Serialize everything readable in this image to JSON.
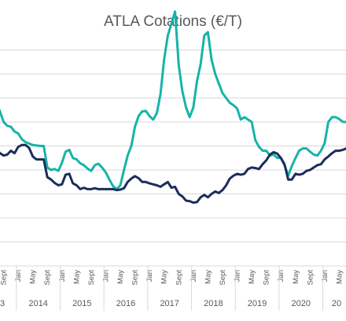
{
  "chart_data": {
    "type": "line",
    "title": "ATLA Cotations (€/T)",
    "xlabel": "",
    "ylabel": "",
    "grid": true,
    "legend": "none",
    "x": [
      "2013-05",
      "2013-06",
      "2013-07",
      "2013-08",
      "2013-09",
      "2013-10",
      "2013-11",
      "2013-12",
      "2014-01",
      "2014-02",
      "2014-03",
      "2014-04",
      "2014-05",
      "2014-06",
      "2014-07",
      "2014-08",
      "2014-09",
      "2014-10",
      "2014-11",
      "2014-12",
      "2015-01",
      "2015-02",
      "2015-03",
      "2015-04",
      "2015-05",
      "2015-06",
      "2015-07",
      "2015-08",
      "2015-09",
      "2015-10",
      "2015-11",
      "2015-12",
      "2016-01",
      "2016-02",
      "2016-03",
      "2016-04",
      "2016-05",
      "2016-06",
      "2016-07",
      "2016-08",
      "2016-09",
      "2016-10",
      "2016-11",
      "2016-12",
      "2017-01",
      "2017-02",
      "2017-03",
      "2017-04",
      "2017-05",
      "2017-06",
      "2017-07",
      "2017-08",
      "2017-09",
      "2017-10",
      "2017-11",
      "2017-12",
      "2018-01",
      "2018-02",
      "2018-03",
      "2018-04",
      "2018-05",
      "2018-06",
      "2018-07",
      "2018-08",
      "2018-09",
      "2018-10",
      "2018-11",
      "2018-12",
      "2019-01",
      "2019-02",
      "2019-03",
      "2019-04",
      "2019-05",
      "2019-06",
      "2019-07",
      "2019-08",
      "2019-09",
      "2019-10",
      "2019-11",
      "2019-12",
      "2020-01",
      "2020-02",
      "2020-03",
      "2020-04",
      "2020-05",
      "2020-06",
      "2020-07",
      "2020-08",
      "2020-09",
      "2020-10",
      "2020-11",
      "2020-12",
      "2021-01",
      "2021-02",
      "2021-03",
      "2021-04",
      "2021-05",
      "2021-06",
      "2021-07",
      "2021-08"
    ],
    "series": [
      {
        "color": "#17b3a8",
        "values": [
          330,
          345,
          340,
          322,
          300,
          292,
          290,
          280,
          276,
          264,
          258,
          255,
          252,
          251,
          250,
          250,
          205,
          200,
          202,
          198,
          215,
          238,
          242,
          225,
          222,
          214,
          210,
          203,
          198,
          210,
          213,
          205,
          195,
          180,
          166,
          160,
          168,
          200,
          230,
          250,
          290,
          312,
          322,
          323,
          312,
          305,
          318,
          358,
          430,
          480,
          505,
          530,
          418,
          364,
          330,
          310,
          330,
          385,
          420,
          480,
          487,
          430,
          400,
          380,
          360,
          350,
          340,
          335,
          328,
          305,
          310,
          305,
          300,
          262,
          248,
          240,
          240,
          230,
          232,
          225,
          225,
          210,
          188,
          208,
          225,
          240,
          245,
          245,
          238,
          232,
          230,
          240,
          256,
          300,
          310,
          310,
          306,
          300,
          300,
          300
        ]
      },
      {
        "color": "#1c2d5c",
        "values": [
          255,
          250,
          245,
          235,
          230,
          232,
          240,
          235,
          248,
          252,
          252,
          246,
          228,
          222,
          222,
          222,
          185,
          180,
          173,
          168,
          170,
          190,
          192,
          172,
          168,
          160,
          163,
          160,
          160,
          162,
          160,
          160,
          160,
          160,
          160,
          158,
          159,
          162,
          175,
          182,
          187,
          183,
          175,
          175,
          172,
          170,
          168,
          165,
          170,
          175,
          163,
          165,
          150,
          145,
          136,
          135,
          132,
          133,
          143,
          148,
          143,
          150,
          155,
          152,
          158,
          168,
          182,
          188,
          192,
          190,
          192,
          202,
          205,
          204,
          202,
          212,
          220,
          232,
          237,
          234,
          225,
          212,
          180,
          180,
          192,
          190,
          192,
          198,
          200,
          205,
          210,
          212,
          222,
          228,
          235,
          240,
          240,
          242,
          245,
          245
        ]
      }
    ],
    "x_month_labels": [
      "Sept",
      "Jan",
      "May",
      "Sept",
      "Jan",
      "May",
      "Sept",
      "Jan",
      "May",
      "Sept",
      "Jan",
      "May",
      "Sept",
      "Jan",
      "May",
      "Sept",
      "Jan",
      "May",
      "Sept",
      "Jan",
      "May",
      "Sept",
      "Jan",
      "May"
    ],
    "x_year_labels": [
      "3",
      "2014",
      "2015",
      "2016",
      "2017",
      "2018",
      "2019",
      "2020",
      "20"
    ]
  }
}
